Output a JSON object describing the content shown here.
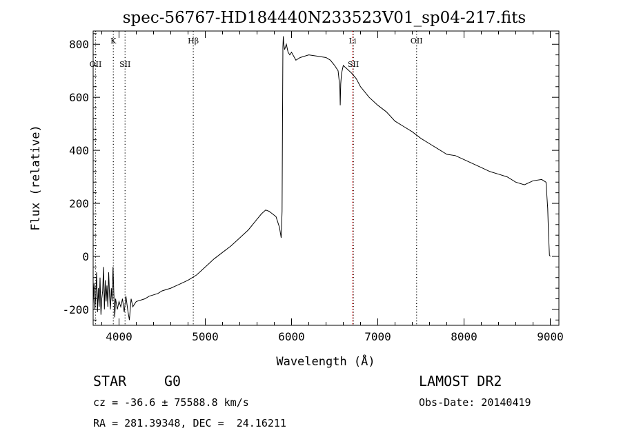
{
  "chart_data": {
    "type": "line",
    "title": "spec-56767-HD184440N233523V01_sp04-217.fits",
    "xlabel": "Wavelength (Å)",
    "ylabel": "Flux (relative)",
    "xlim": [
      3700,
      9100
    ],
    "ylim": [
      -260,
      850
    ],
    "xticks": [
      4000,
      5000,
      6000,
      7000,
      8000,
      9000
    ],
    "yticks": [
      -200,
      0,
      200,
      400,
      600,
      800
    ],
    "grid": false,
    "line_color": "#000000",
    "series": [
      {
        "x": [
          3700,
          3710,
          3720,
          3730,
          3740,
          3750,
          3760,
          3770,
          3780,
          3790,
          3800,
          3810,
          3820,
          3830,
          3840,
          3850,
          3860,
          3870,
          3880,
          3890,
          3900,
          3910,
          3920,
          3930,
          3940,
          3950,
          3960,
          3970,
          3980,
          4000,
          4020,
          4040,
          4060,
          4080,
          4100,
          4120,
          4140,
          4160,
          4180,
          4200,
          4250,
          4300,
          4350,
          4400,
          4450,
          4500,
          4600,
          4700,
          4800,
          4900,
          5000,
          5100,
          5200,
          5300,
          5400,
          5500,
          5600,
          5650,
          5700,
          5740,
          5780,
          5820,
          5860,
          5880,
          5890,
          5895,
          5900,
          5905,
          5910,
          5920,
          5940,
          5960,
          5980,
          6000,
          6050,
          6100,
          6200,
          6300,
          6400,
          6450,
          6500,
          6540,
          6560,
          6565,
          6570,
          6580,
          6600,
          6650,
          6700,
          6750,
          6800,
          6900,
          7000,
          7100,
          7200,
          7300,
          7400,
          7500,
          7600,
          7700,
          7800,
          7900,
          8000,
          8100,
          8200,
          8300,
          8400,
          8500,
          8600,
          8700,
          8800,
          8900,
          8950,
          8970,
          8980,
          8990,
          9000
        ],
        "y": [
          -180,
          -100,
          -200,
          -150,
          -60,
          -210,
          -120,
          -190,
          -80,
          -220,
          -160,
          -130,
          -40,
          -200,
          -90,
          -170,
          -110,
          -190,
          -60,
          -150,
          -200,
          -120,
          -170,
          -40,
          -140,
          -230,
          -160,
          -180,
          -200,
          -170,
          -190,
          -160,
          -210,
          -150,
          -200,
          -240,
          -160,
          -190,
          -180,
          -170,
          -165,
          -160,
          -150,
          -145,
          -140,
          -130,
          -120,
          -105,
          -90,
          -70,
          -40,
          -10,
          15,
          40,
          70,
          100,
          140,
          160,
          175,
          170,
          160,
          150,
          110,
          70,
          170,
          500,
          790,
          830,
          800,
          780,
          800,
          770,
          760,
          770,
          740,
          750,
          760,
          755,
          750,
          740,
          720,
          700,
          640,
          570,
          650,
          690,
          720,
          705,
          690,
          670,
          640,
          600,
          570,
          545,
          510,
          490,
          470,
          445,
          425,
          405,
          385,
          380,
          365,
          350,
          335,
          320,
          310,
          300,
          280,
          270,
          285,
          290,
          280,
          180,
          80,
          5,
          0
        ]
      }
    ],
    "annotations": [
      {
        "label": "OII",
        "x": 3728,
        "row": "low"
      },
      {
        "label": "K",
        "x": 3934,
        "row": "high"
      },
      {
        "label": "SII",
        "x": 4070,
        "row": "low"
      },
      {
        "label": "Hβ",
        "x": 4861,
        "row": "high"
      },
      {
        "label": "Li",
        "x": 6708,
        "row": "high",
        "color": "#ff0000"
      },
      {
        "label": "SII",
        "x": 6717,
        "row": "low"
      },
      {
        "label": "OII",
        "x": 7450,
        "row": "high"
      }
    ]
  },
  "info": {
    "object_class": "STAR",
    "subclass": "G0",
    "survey": "LAMOST DR2",
    "cz_line": "cz = -36.6 ± 75588.8 km/s",
    "obs_date_line": "Obs-Date: 20140419",
    "coords_line": "RA = 281.39348, DEC =  24.16211"
  }
}
